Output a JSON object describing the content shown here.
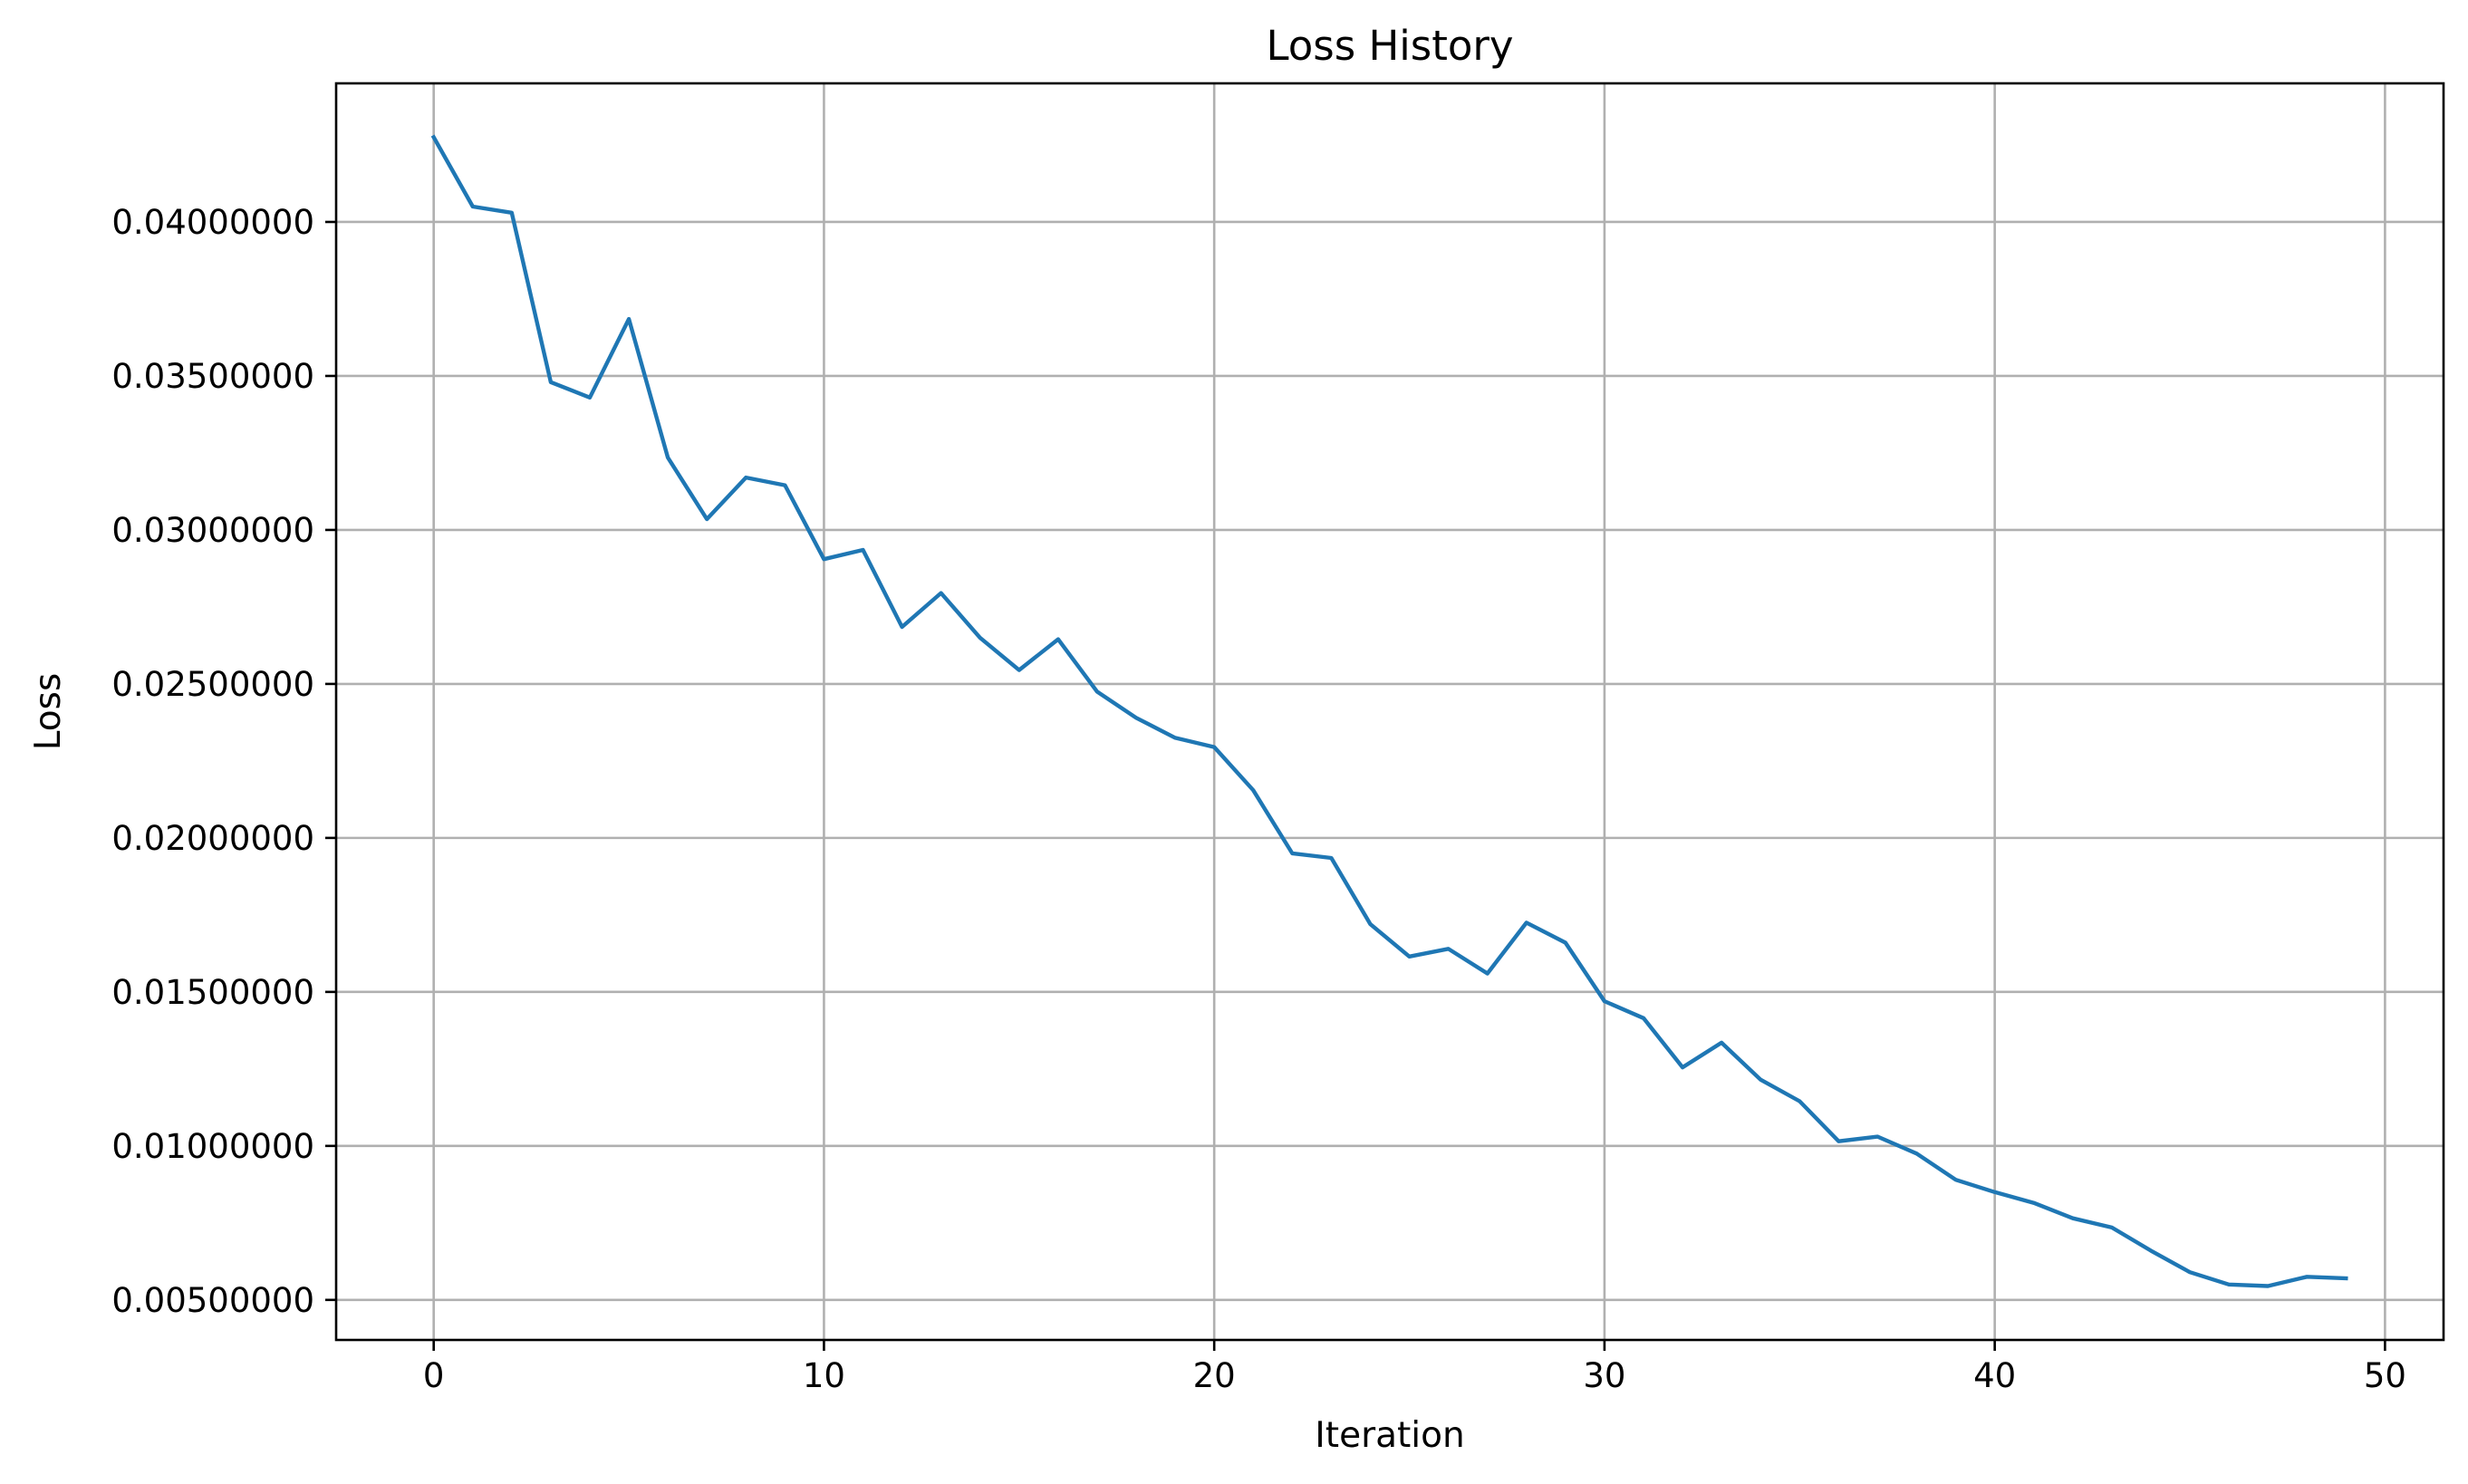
{
  "chart_data": {
    "type": "line",
    "title": "Loss History",
    "xlabel": "Iteration",
    "ylabel": "Loss",
    "grid": true,
    "xlim": [
      -2.5,
      51.5
    ],
    "ylim": [
      0.0037,
      0.0445
    ],
    "xticks": [
      0,
      10,
      20,
      30,
      40,
      50
    ],
    "xtick_labels": [
      "0",
      "10",
      "20",
      "30",
      "40",
      "50"
    ],
    "yticks": [
      0.005,
      0.01,
      0.015,
      0.02,
      0.025,
      0.03,
      0.035,
      0.04
    ],
    "ytick_labels": [
      "0.00500000",
      "0.01000000",
      "0.01500000",
      "0.02000000",
      "0.02500000",
      "0.03000000",
      "0.03500000",
      "0.04000000"
    ],
    "series": [
      {
        "color": "#1f77b4",
        "x": [
          0,
          1,
          2,
          3,
          4,
          5,
          6,
          7,
          8,
          9,
          10,
          11,
          12,
          13,
          14,
          15,
          16,
          17,
          18,
          19,
          20,
          21,
          22,
          23,
          24,
          25,
          26,
          27,
          28,
          29,
          30,
          31,
          32,
          33,
          34,
          35,
          36,
          37,
          38,
          39,
          40,
          41,
          42,
          43,
          44,
          45,
          46,
          47,
          48,
          49
        ],
        "y": [
          0.04275,
          0.0405,
          0.0403,
          0.0348,
          0.0343,
          0.03685,
          0.03235,
          0.03035,
          0.0317,
          0.03145,
          0.02905,
          0.02935,
          0.02685,
          0.02795,
          0.0265,
          0.02545,
          0.02645,
          0.02475,
          0.0239,
          0.02325,
          0.02295,
          0.02155,
          0.0195,
          0.01935,
          0.0172,
          0.01615,
          0.0164,
          0.0156,
          0.01725,
          0.0166,
          0.0147,
          0.01415,
          0.01255,
          0.01335,
          0.01215,
          0.01145,
          0.01015,
          0.0103,
          0.00975,
          0.0089,
          0.0085,
          0.00815,
          0.00765,
          0.00735,
          0.0066,
          0.0059,
          0.0055,
          0.00545,
          0.00575,
          0.0057
        ]
      }
    ]
  }
}
